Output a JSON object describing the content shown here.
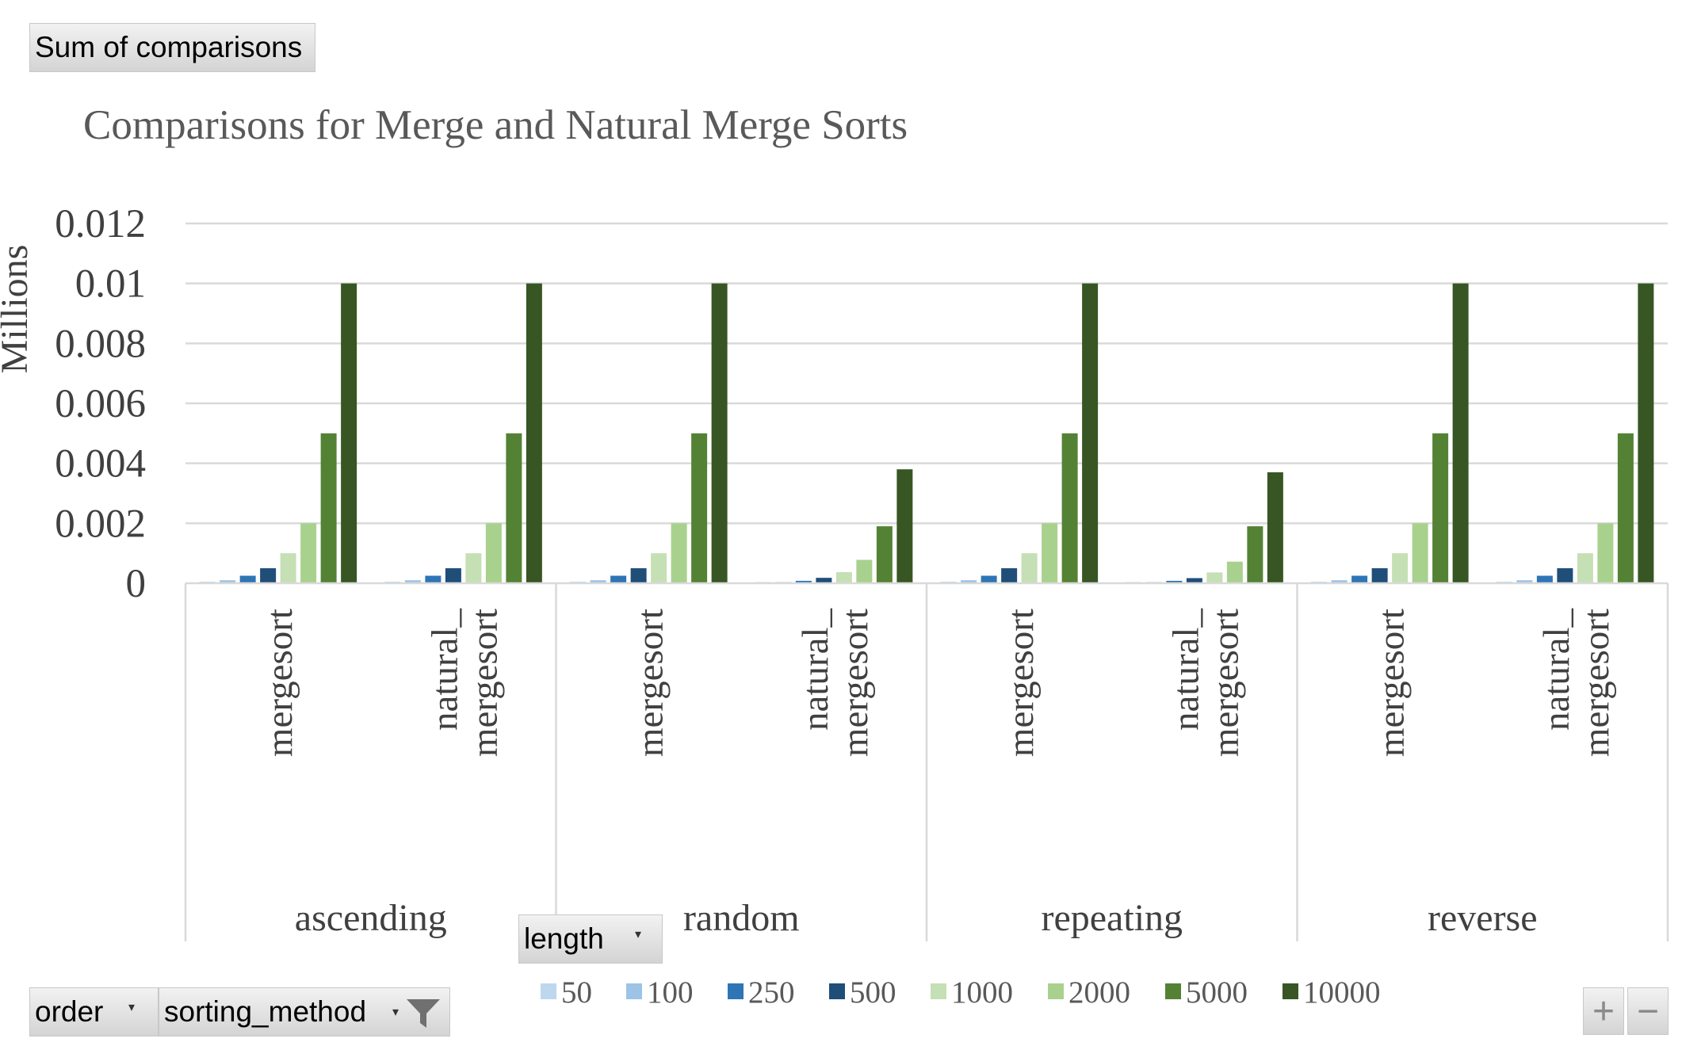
{
  "pivot": {
    "value_field": "Sum of comparisons",
    "legend_field": "length",
    "axis_fields": [
      "order",
      "sorting_method"
    ]
  },
  "chart_data": {
    "type": "bar",
    "title": "Comparisons for Merge and Natural Merge Sorts",
    "ylabel": "Millions",
    "xlabel": "",
    "ylim": [
      0,
      0.012
    ],
    "yticks": [
      "0",
      "0.002",
      "0.004",
      "0.006",
      "0.008",
      "0.01",
      "0.012"
    ],
    "grid": true,
    "legend_position": "bottom",
    "groups": [
      "ascending",
      "random",
      "repeating",
      "reverse"
    ],
    "categories": [
      {
        "group": "ascending",
        "label": "mergesort"
      },
      {
        "group": "ascending",
        "label": "natural_mergesort"
      },
      {
        "group": "random",
        "label": "mergesort"
      },
      {
        "group": "random",
        "label": "natural_mergesort"
      },
      {
        "group": "repeating",
        "label": "mergesort"
      },
      {
        "group": "repeating",
        "label": "natural_mergesort"
      },
      {
        "group": "reverse",
        "label": "mergesort"
      },
      {
        "group": "reverse",
        "label": "natural_mergesort"
      }
    ],
    "series": [
      {
        "name": "50",
        "color": "#bdd7ee",
        "values": [
          5e-05,
          5e-05,
          5e-05,
          1e-05,
          5e-05,
          1e-05,
          5e-05,
          5e-05
        ]
      },
      {
        "name": "100",
        "color": "#9dc3e6",
        "values": [
          0.0001,
          0.0001,
          0.0001,
          3e-05,
          0.0001,
          3e-05,
          0.0001,
          0.0001
        ]
      },
      {
        "name": "250",
        "color": "#2e75b6",
        "values": [
          0.00025,
          0.00025,
          0.00025,
          8e-05,
          0.00025,
          8e-05,
          0.00025,
          0.00025
        ]
      },
      {
        "name": "500",
        "color": "#1f4e79",
        "values": [
          0.0005,
          0.0005,
          0.0005,
          0.00018,
          0.0005,
          0.00017,
          0.0005,
          0.0005
        ]
      },
      {
        "name": "1000",
        "color": "#c5e0b4",
        "values": [
          0.001,
          0.001,
          0.001,
          0.00037,
          0.001,
          0.00036,
          0.001,
          0.001
        ]
      },
      {
        "name": "2000",
        "color": "#a9d18e",
        "values": [
          0.002,
          0.002,
          0.002,
          0.00078,
          0.002,
          0.00072,
          0.002,
          0.002
        ]
      },
      {
        "name": "5000",
        "color": "#548235",
        "values": [
          0.005,
          0.005,
          0.005,
          0.0019,
          0.005,
          0.0019,
          0.005,
          0.005
        ]
      },
      {
        "name": "10000",
        "color": "#375623",
        "values": [
          0.01,
          0.01,
          0.01,
          0.0038,
          0.01,
          0.0037,
          0.01,
          0.01
        ]
      }
    ]
  },
  "controls": {
    "zoom_in": "+",
    "zoom_out": "−",
    "filter_icon": "filter-icon",
    "dropdown_icon": "dropdown-arrow-icon"
  }
}
